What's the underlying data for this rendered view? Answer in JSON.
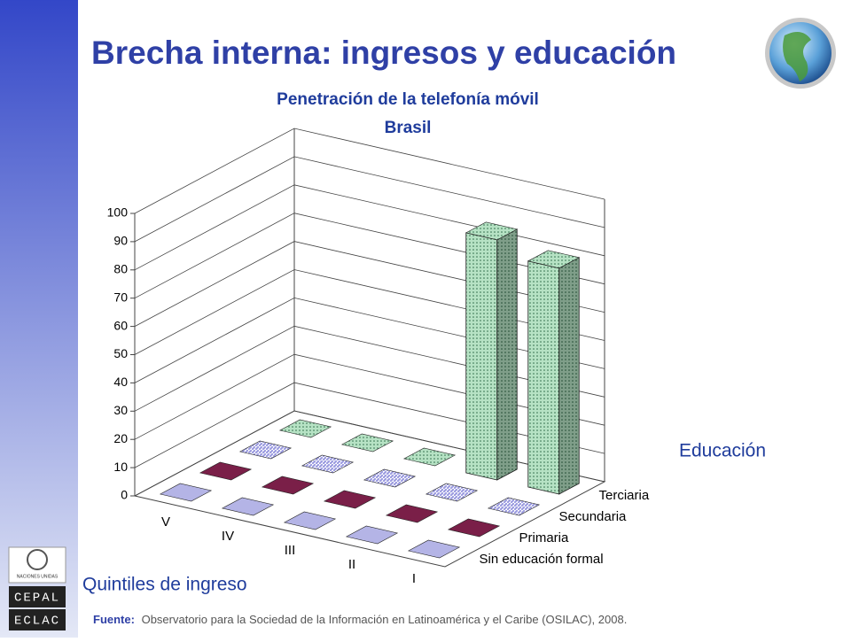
{
  "slide": {
    "title": "Brecha interna: ingresos y educación",
    "source_label": "Fuente:",
    "source": "Observatorio para la Sociedad de la Información en Latinoamérica y el Caribe (OSILAC), 2008.",
    "logo_top": "NACIONES UNIDAS",
    "logo_line1": "CEPAL",
    "logo_line2": "ECLAC"
  },
  "chart_data": {
    "type": "bar3d",
    "title": "Penetración de la telefonía móvil",
    "subtitle": "Brasil",
    "x_label": "Quintiles de ingreso",
    "legend_title": "Educación",
    "categories": [
      "V",
      "IV",
      "III",
      "II",
      "I"
    ],
    "series": [
      {
        "name": "Sin educación formal",
        "color": "#b4b4e6",
        "pattern": "solid",
        "values": [
          0,
          0,
          0,
          0,
          0
        ]
      },
      {
        "name": "Primaria",
        "color": "#7a1f48",
        "pattern": "solid",
        "values": [
          0,
          0,
          0,
          0,
          0
        ]
      },
      {
        "name": "Secundaria",
        "color": "#9c9ce0",
        "pattern": "stripes",
        "values": [
          0,
          0,
          0,
          0,
          0
        ]
      },
      {
        "name": "Terciaria",
        "color": "#b6e2c4",
        "pattern": "dots",
        "values": [
          0,
          0,
          0,
          85,
          80
        ]
      }
    ],
    "ylim": [
      0,
      100
    ],
    "yticks": [
      0,
      10,
      20,
      30,
      40,
      50,
      60,
      70,
      80,
      90,
      100
    ],
    "grid": true
  }
}
